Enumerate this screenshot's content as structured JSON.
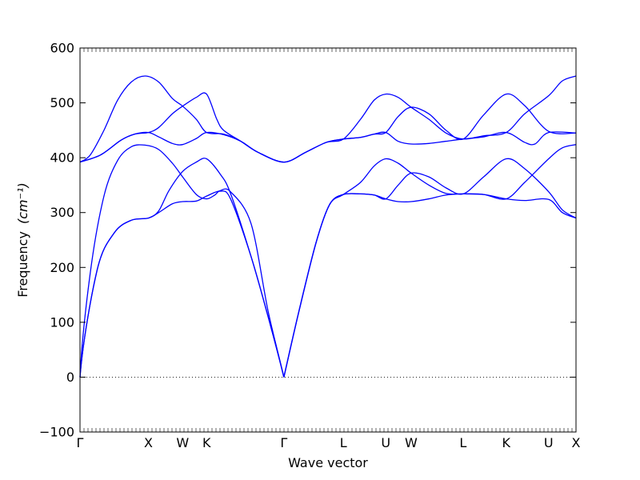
{
  "chart_data": {
    "type": "line",
    "title": "",
    "xlabel": "Wave vector",
    "ylabel": "Frequency",
    "ylabel_unit": "(cm⁻¹)",
    "ylim": [
      -100,
      600
    ],
    "yticks": [
      -100,
      0,
      100,
      200,
      300,
      400,
      500,
      600
    ],
    "grid": false,
    "zero_line": true,
    "xlim": [
      0,
      7.25
    ],
    "high_symmetry_points": [
      {
        "label": "Γ",
        "x": 0
      },
      {
        "label": "X",
        "x": 1.0
      },
      {
        "label": "W",
        "x": 1.5
      },
      {
        "label": "K",
        "x": 1.85
      },
      {
        "label": "Γ",
        "x": 2.98
      },
      {
        "label": "L",
        "x": 3.85
      },
      {
        "label": "U",
        "x": 4.47
      },
      {
        "label": "W",
        "x": 4.84
      },
      {
        "label": "L",
        "x": 5.6
      },
      {
        "label": "K",
        "x": 6.23
      },
      {
        "label": "U",
        "x": 6.85
      },
      {
        "label": "X",
        "x": 7.25
      }
    ],
    "series": [
      {
        "values": [
          [
            0,
            0
          ],
          [
            0.25,
            195
          ],
          [
            0.5,
            263
          ],
          [
            0.75,
            286
          ],
          [
            1.0,
            290
          ],
          [
            1.15,
            300
          ],
          [
            1.35,
            316
          ],
          [
            1.5,
            320
          ],
          [
            1.7,
            321
          ],
          [
            1.85,
            330
          ],
          [
            2.05,
            339
          ],
          [
            2.2,
            325
          ],
          [
            2.5,
            220
          ],
          [
            2.75,
            110
          ],
          [
            2.98,
            0
          ],
          [
            3.2,
            120
          ],
          [
            3.45,
            245
          ],
          [
            3.65,
            315
          ],
          [
            3.85,
            333
          ],
          [
            4.1,
            334
          ],
          [
            4.3,
            332
          ],
          [
            4.47,
            325
          ],
          [
            4.65,
            320
          ],
          [
            4.84,
            320
          ],
          [
            5.1,
            325
          ],
          [
            5.35,
            332
          ],
          [
            5.6,
            334
          ],
          [
            5.9,
            333
          ],
          [
            6.23,
            325
          ],
          [
            6.5,
            322
          ],
          [
            6.85,
            324
          ],
          [
            7.05,
            300
          ],
          [
            7.25,
            290
          ]
        ]
      },
      {
        "values": [
          [
            0,
            0
          ],
          [
            0.25,
            195
          ],
          [
            0.5,
            263
          ],
          [
            0.75,
            286
          ],
          [
            1.0,
            290
          ],
          [
            1.15,
            303
          ],
          [
            1.3,
            340
          ],
          [
            1.5,
            375
          ],
          [
            1.7,
            392
          ],
          [
            1.85,
            398
          ],
          [
            2.05,
            370
          ],
          [
            2.2,
            335
          ],
          [
            2.5,
            220
          ],
          [
            2.75,
            110
          ],
          [
            2.98,
            0
          ],
          [
            3.2,
            120
          ],
          [
            3.45,
            245
          ],
          [
            3.65,
            315
          ],
          [
            3.85,
            333
          ],
          [
            4.1,
            334
          ],
          [
            4.3,
            332
          ],
          [
            4.47,
            325
          ],
          [
            4.65,
            350
          ],
          [
            4.84,
            372
          ],
          [
            5.1,
            365
          ],
          [
            5.35,
            345
          ],
          [
            5.6,
            334
          ],
          [
            5.9,
            365
          ],
          [
            6.23,
            398
          ],
          [
            6.5,
            380
          ],
          [
            6.85,
            338
          ],
          [
            7.05,
            305
          ],
          [
            7.25,
            290
          ]
        ]
      },
      {
        "values": [
          [
            0,
            0
          ],
          [
            0.15,
            190
          ],
          [
            0.35,
            330
          ],
          [
            0.55,
            395
          ],
          [
            0.75,
            420
          ],
          [
            0.95,
            423
          ],
          [
            1.15,
            415
          ],
          [
            1.35,
            390
          ],
          [
            1.5,
            365
          ],
          [
            1.7,
            333
          ],
          [
            1.85,
            325
          ],
          [
            1.97,
            332
          ],
          [
            2.05,
            340
          ],
          [
            2.2,
            338
          ],
          [
            2.5,
            280
          ],
          [
            2.75,
            120
          ],
          [
            2.98,
            0
          ],
          [
            3.2,
            120
          ],
          [
            3.45,
            245
          ],
          [
            3.65,
            315
          ],
          [
            3.85,
            333
          ],
          [
            4.1,
            355
          ],
          [
            4.3,
            385
          ],
          [
            4.47,
            398
          ],
          [
            4.65,
            390
          ],
          [
            4.84,
            372
          ],
          [
            5.1,
            350
          ],
          [
            5.35,
            335
          ],
          [
            5.6,
            334
          ],
          [
            5.9,
            333
          ],
          [
            6.23,
            325
          ],
          [
            6.5,
            355
          ],
          [
            6.85,
            398
          ],
          [
            7.05,
            418
          ],
          [
            7.25,
            424
          ]
        ]
      },
      {
        "values": [
          [
            0,
            392
          ],
          [
            0.3,
            405
          ],
          [
            0.6,
            432
          ],
          [
            0.8,
            443
          ],
          [
            1.0,
            446
          ],
          [
            1.15,
            438
          ],
          [
            1.35,
            426
          ],
          [
            1.5,
            424
          ],
          [
            1.7,
            435
          ],
          [
            1.85,
            446
          ],
          [
            2.1,
            442
          ],
          [
            2.35,
            430
          ],
          [
            2.6,
            410
          ],
          [
            2.98,
            392
          ],
          [
            3.3,
            410
          ],
          [
            3.6,
            428
          ],
          [
            3.85,
            434
          ],
          [
            4.1,
            437
          ],
          [
            4.3,
            443
          ],
          [
            4.47,
            446
          ],
          [
            4.65,
            430
          ],
          [
            4.84,
            425
          ],
          [
            5.1,
            426
          ],
          [
            5.35,
            430
          ],
          [
            5.6,
            434
          ],
          [
            5.9,
            438
          ],
          [
            6.23,
            446
          ],
          [
            6.5,
            428
          ],
          [
            6.65,
            425
          ],
          [
            6.85,
            446
          ],
          [
            7.25,
            445
          ]
        ]
      },
      {
        "values": [
          [
            0,
            392
          ],
          [
            0.3,
            405
          ],
          [
            0.6,
            432
          ],
          [
            0.8,
            443
          ],
          [
            1.0,
            446
          ],
          [
            1.15,
            455
          ],
          [
            1.35,
            480
          ],
          [
            1.5,
            494
          ],
          [
            1.7,
            510
          ],
          [
            1.85,
            516
          ],
          [
            2.0,
            470
          ],
          [
            2.1,
            450
          ],
          [
            2.35,
            430
          ],
          [
            2.6,
            410
          ],
          [
            2.98,
            392
          ],
          [
            3.3,
            410
          ],
          [
            3.6,
            428
          ],
          [
            3.85,
            434
          ],
          [
            4.1,
            437
          ],
          [
            4.3,
            443
          ],
          [
            4.47,
            446
          ],
          [
            4.65,
            475
          ],
          [
            4.84,
            492
          ],
          [
            5.1,
            480
          ],
          [
            5.35,
            450
          ],
          [
            5.6,
            434
          ],
          [
            5.9,
            478
          ],
          [
            6.23,
            516
          ],
          [
            6.5,
            495
          ],
          [
            6.85,
            448
          ],
          [
            7.25,
            445
          ]
        ]
      },
      {
        "values": [
          [
            0,
            392
          ],
          [
            0.15,
            405
          ],
          [
            0.35,
            450
          ],
          [
            0.55,
            505
          ],
          [
            0.75,
            538
          ],
          [
            0.95,
            549
          ],
          [
            1.15,
            538
          ],
          [
            1.35,
            508
          ],
          [
            1.5,
            494
          ],
          [
            1.7,
            470
          ],
          [
            1.85,
            446
          ],
          [
            2.1,
            443
          ],
          [
            2.35,
            430
          ],
          [
            2.6,
            410
          ],
          [
            2.98,
            392
          ],
          [
            3.3,
            410
          ],
          [
            3.6,
            428
          ],
          [
            3.85,
            434
          ],
          [
            4.1,
            470
          ],
          [
            4.3,
            505
          ],
          [
            4.47,
            516
          ],
          [
            4.65,
            510
          ],
          [
            4.84,
            492
          ],
          [
            5.1,
            470
          ],
          [
            5.35,
            445
          ],
          [
            5.6,
            434
          ],
          [
            5.9,
            440
          ],
          [
            6.23,
            446
          ],
          [
            6.5,
            480
          ],
          [
            6.85,
            513
          ],
          [
            7.05,
            540
          ],
          [
            7.25,
            549
          ]
        ]
      }
    ]
  }
}
